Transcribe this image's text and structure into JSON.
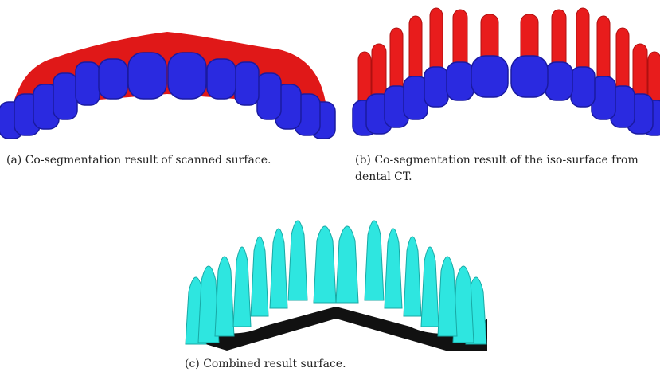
{
  "figure": {
    "panels": [
      {
        "caption": "(a) Co-segmentation result of scanned surface."
      },
      {
        "caption": "(b) Co-segmentation result of the iso-surface from dental CT."
      },
      {
        "caption": "(c) Combined result surface."
      }
    ]
  }
}
